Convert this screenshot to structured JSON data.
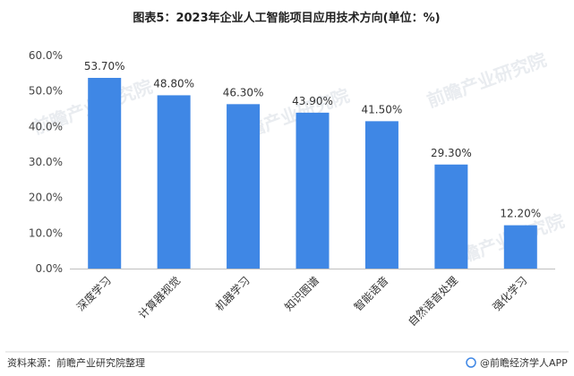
{
  "title": "图表5：2023年企业人工智能项目应用技术方向(单位：%)",
  "source": "资料来源：前瞻产业研究院整理",
  "brand": "@前瞻经济学人APP",
  "watermark": "前瞻产业研究院",
  "colors": {
    "bar": "#3f87e5",
    "axis": "#bfbfbf"
  },
  "chart_data": {
    "type": "bar",
    "title": "图表5：2023年企业人工智能项目应用技术方向(单位：%)",
    "categories": [
      "深度学习",
      "计算器视觉",
      "机器学习",
      "知识图谱",
      "智能语音",
      "自然语音处理",
      "强化学习"
    ],
    "values": [
      53.7,
      48.8,
      46.3,
      43.9,
      41.5,
      29.3,
      12.2
    ],
    "data_labels": [
      "53.70%",
      "48.80%",
      "46.30%",
      "43.90%",
      "41.50%",
      "29.30%",
      "12.20%"
    ],
    "y_ticks": [
      0,
      10,
      20,
      30,
      40,
      50,
      60
    ],
    "y_tick_labels": [
      "0.0%",
      "10.0%",
      "20.0%",
      "30.0%",
      "40.0%",
      "50.0%",
      "60.0%"
    ],
    "ylim": [
      0,
      60
    ],
    "xlabel": "",
    "ylabel": "",
    "grid": false,
    "legend": "none"
  }
}
